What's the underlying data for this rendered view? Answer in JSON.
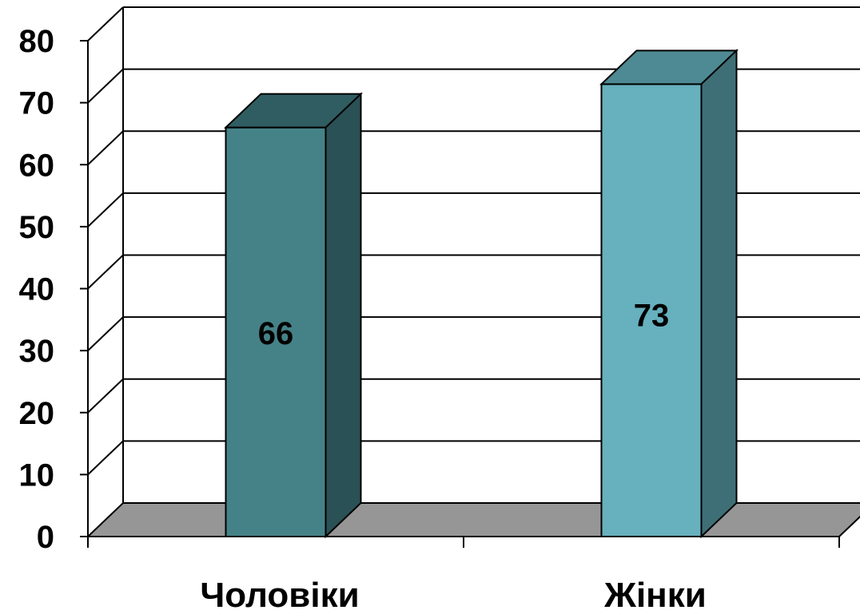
{
  "chart_data": {
    "type": "bar",
    "three_d": true,
    "categories": [
      "Чоловіки",
      "Жінки"
    ],
    "values": [
      66,
      73
    ],
    "data_labels": [
      "66",
      "73"
    ],
    "title": "",
    "xlabel": "",
    "ylabel": "",
    "ylim": [
      0,
      80
    ],
    "y_ticks": [
      "0",
      "10",
      "20",
      "30",
      "40",
      "50",
      "60",
      "70",
      "80"
    ],
    "grid": true,
    "legend": "none",
    "colors": {
      "bar_front": [
        "#458287",
        "#67b0be"
      ],
      "bar_top": [
        "#2f5d62",
        "#4e8a93"
      ],
      "bar_side": [
        "#2a5155",
        "#3f6f76"
      ],
      "floor": "#969696",
      "gridline": "#000000"
    }
  }
}
